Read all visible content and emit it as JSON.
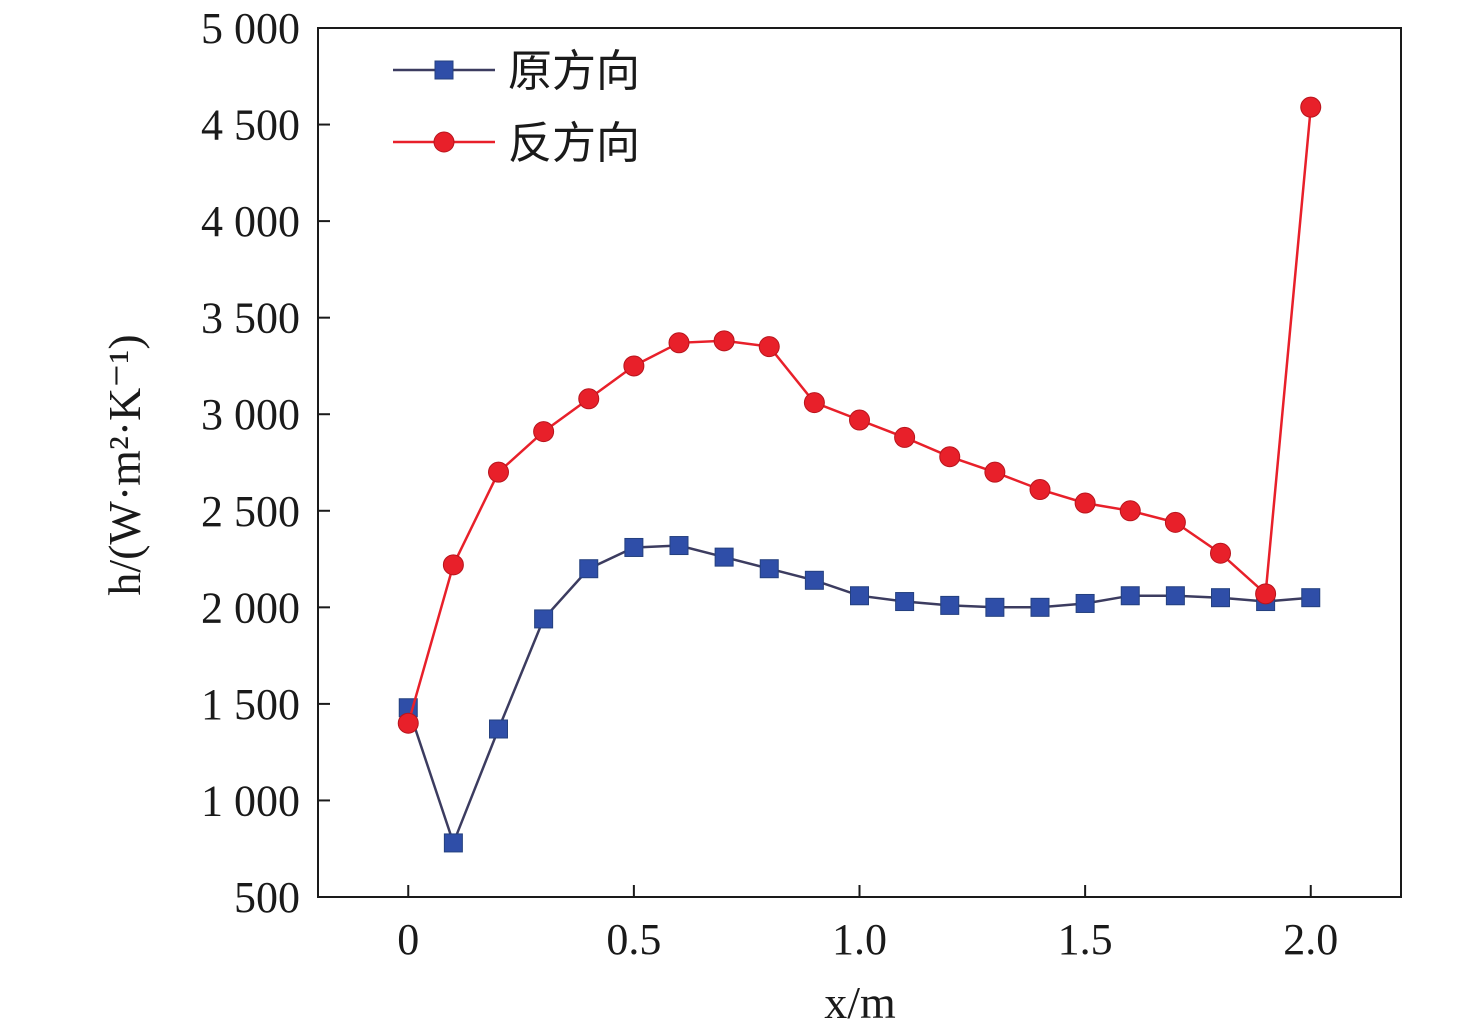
{
  "chart_data": {
    "type": "line",
    "title": "",
    "xlabel": "x/m",
    "ylabel": "h/(W·m²·K⁻¹)",
    "xlim": [
      -0.2,
      2.2
    ],
    "ylim": [
      500,
      5000
    ],
    "xticks": [
      0,
      0.5,
      1.0,
      1.5,
      2.0
    ],
    "xtick_labels": [
      "0",
      "0.5",
      "1.0",
      "1.5",
      "2.0"
    ],
    "yticks": [
      500,
      1000,
      1500,
      2000,
      2500,
      3000,
      3500,
      4000,
      4500,
      5000
    ],
    "ytick_labels": [
      "500",
      "1 000",
      "1 500",
      "2 000",
      "2 500",
      "3 000",
      "3 500",
      "4 000",
      "4 500",
      "5 000"
    ],
    "grid": false,
    "legend_position": "top-left",
    "x": [
      0,
      0.1,
      0.2,
      0.3,
      0.4,
      0.5,
      0.6,
      0.7,
      0.8,
      0.9,
      1.0,
      1.1,
      1.2,
      1.3,
      1.4,
      1.5,
      1.6,
      1.7,
      1.8,
      1.9,
      2.0
    ],
    "series": [
      {
        "name": "原方向",
        "color": "#2f4ea8",
        "line_color": "#3c3c60",
        "marker": "square",
        "values": [
          1480,
          780,
          1370,
          1940,
          2200,
          2310,
          2320,
          2260,
          2200,
          2140,
          2060,
          2030,
          2010,
          2000,
          2000,
          2020,
          2060,
          2060,
          2050,
          2030,
          2050
        ]
      },
      {
        "name": "反方向",
        "color": "#e8202a",
        "line_color": "#e8202a",
        "marker": "circle",
        "values": [
          1400,
          2220,
          2700,
          2910,
          3080,
          3250,
          3370,
          3380,
          3350,
          3060,
          2970,
          2880,
          2780,
          2700,
          2610,
          2540,
          2500,
          2440,
          2280,
          2070,
          4590
        ]
      }
    ]
  }
}
